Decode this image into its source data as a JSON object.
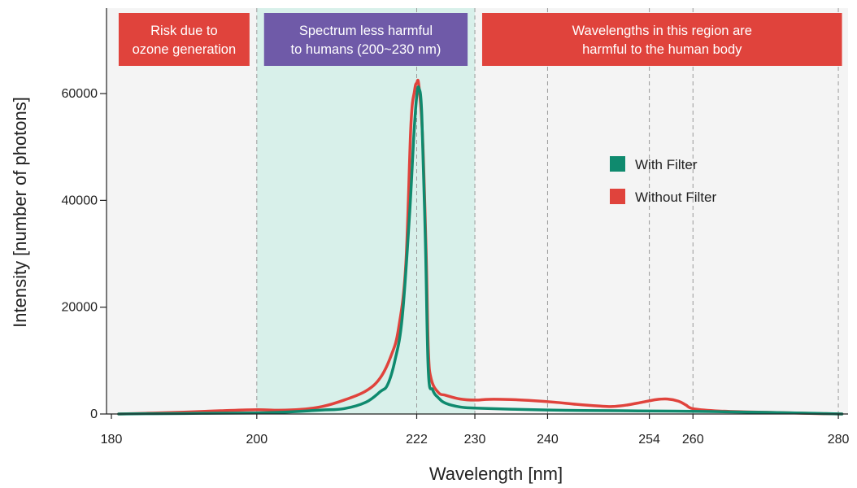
{
  "chart_data": {
    "type": "line",
    "xlabel": "Wavelength [nm]",
    "ylabel": "Intensity [number of photons]",
    "xlim": [
      180,
      281
    ],
    "ylim": [
      0,
      76000
    ],
    "x_ticks": [
      180,
      200,
      222,
      230,
      240,
      254,
      260,
      280
    ],
    "y_ticks": [
      0,
      20000,
      40000,
      60000
    ],
    "vertical_gridlines": [
      200,
      222,
      230,
      240,
      254,
      260,
      280
    ],
    "highlight_band": {
      "from": 200,
      "to": 230,
      "color": "#d8f0ea"
    },
    "plot_background": "#f4f4f4",
    "banners": [
      {
        "lines": [
          "Risk due to",
          "ozone generation"
        ],
        "from": 181,
        "to": 199,
        "color": "#e0433c"
      },
      {
        "lines": [
          "Spectrum less harmful",
          "to humans (200~230 nm)"
        ],
        "from": 201,
        "to": 229,
        "color": "#6f5aa8"
      },
      {
        "lines": [
          "Wavelengths in this region are",
          "harmful to the human body"
        ],
        "from": 231,
        "to": 280.5,
        "color": "#e0433c"
      }
    ],
    "legend": {
      "position": "right-middle"
    },
    "series": [
      {
        "name": "Without Filter",
        "color": "#e0433c",
        "points": [
          [
            181,
            0
          ],
          [
            185,
            150
          ],
          [
            190,
            350
          ],
          [
            195,
            600
          ],
          [
            200,
            800
          ],
          [
            203,
            700
          ],
          [
            206,
            850
          ],
          [
            209,
            1400
          ],
          [
            212,
            2600
          ],
          [
            215,
            4300
          ],
          [
            217,
            6800
          ],
          [
            218.5,
            11000
          ],
          [
            219.5,
            16000
          ],
          [
            220.5,
            28000
          ],
          [
            221.2,
            54000
          ],
          [
            221.7,
            60500
          ],
          [
            222,
            62000
          ],
          [
            222.3,
            61500
          ],
          [
            222.8,
            52000
          ],
          [
            223.3,
            30000
          ],
          [
            223.6,
            12000
          ],
          [
            224,
            6500
          ],
          [
            225,
            4000
          ],
          [
            226,
            3500
          ],
          [
            228,
            2800
          ],
          [
            230,
            2600
          ],
          [
            232,
            2750
          ],
          [
            235,
            2700
          ],
          [
            238,
            2500
          ],
          [
            241,
            2200
          ],
          [
            244,
            1800
          ],
          [
            247,
            1500
          ],
          [
            249,
            1400
          ],
          [
            251,
            1700
          ],
          [
            253,
            2200
          ],
          [
            255,
            2700
          ],
          [
            256.5,
            2800
          ],
          [
            258,
            2400
          ],
          [
            259,
            1700
          ],
          [
            260,
            1000
          ],
          [
            263,
            600
          ],
          [
            267,
            400
          ],
          [
            271,
            280
          ],
          [
            275,
            150
          ],
          [
            278,
            60
          ],
          [
            280.5,
            0
          ]
        ]
      },
      {
        "name": "With Filter",
        "color": "#0f8a6e",
        "points": [
          [
            181,
            0
          ],
          [
            185,
            50
          ],
          [
            190,
            100
          ],
          [
            195,
            150
          ],
          [
            200,
            200
          ],
          [
            203,
            300
          ],
          [
            206,
            500
          ],
          [
            209,
            750
          ],
          [
            212,
            1000
          ],
          [
            215,
            2200
          ],
          [
            217,
            4200
          ],
          [
            218,
            5500
          ],
          [
            219,
            10000
          ],
          [
            220,
            18000
          ],
          [
            221,
            37000
          ],
          [
            221.6,
            52000
          ],
          [
            222,
            59500
          ],
          [
            222.3,
            61000
          ],
          [
            222.7,
            56000
          ],
          [
            223.2,
            32000
          ],
          [
            223.6,
            8000
          ],
          [
            224.2,
            4500
          ],
          [
            225,
            3000
          ],
          [
            226,
            2000
          ],
          [
            228,
            1300
          ],
          [
            230,
            1100
          ],
          [
            235,
            900
          ],
          [
            240,
            750
          ],
          [
            245,
            650
          ],
          [
            250,
            600
          ],
          [
            255,
            550
          ],
          [
            260,
            500
          ],
          [
            265,
            400
          ],
          [
            270,
            300
          ],
          [
            275,
            180
          ],
          [
            278,
            80
          ],
          [
            280.5,
            0
          ]
        ]
      }
    ]
  }
}
